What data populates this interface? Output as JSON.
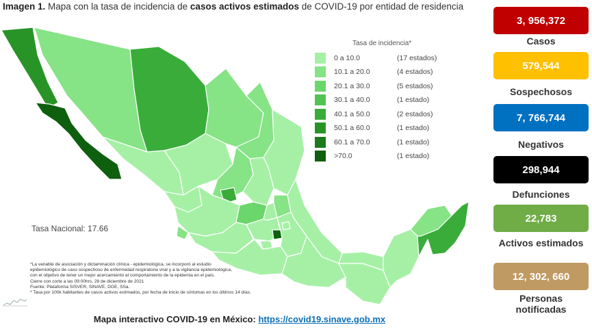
{
  "title": {
    "prefix": "Imagen 1.",
    "text1": " Mapa con la tasa de incidencia de ",
    "bold": "casos activos estimados",
    "text2": " de COVID-19 por entidad de residencia"
  },
  "legend": {
    "heading": "Tasa de incidencia*",
    "rows": [
      {
        "range": "0  a  10.0",
        "count": "(17 estados)",
        "color": "#a6f0a6"
      },
      {
        "range": "10.1 a  20.0",
        "count": "(4 estados)",
        "color": "#86e386"
      },
      {
        "range": "20.1 a  30.0",
        "count": "(5 estados)",
        "color": "#6bd66b"
      },
      {
        "range": "30.1 a  40.0",
        "count": "(1 estado)",
        "color": "#52c452"
      },
      {
        "range": "40.1 a  50.0",
        "count": "(2 estados)",
        "color": "#3aac3a"
      },
      {
        "range": "50.1 a  60.0",
        "count": "(1 estado)",
        "color": "#289428"
      },
      {
        "range": "60.1 a  70.0",
        "count": "(1 estado)",
        "color": "#1b7a1b"
      },
      {
        "range": ">70.0",
        "count": "(1 estado)",
        "color": "#0e5f0e"
      }
    ]
  },
  "tasa_nacional": "Tasa Nacional: 17.66",
  "notes": [
    "*La variable de asociación y dictaminación clínica - epidemiológica, se incorporó al estudio",
    "epidemiológico de caso sospechoso de enfermedad respiratoria viral y a la vigilancia epidemiológica,",
    "con el objetivo de tener un mejor acercamiento al comportamiento de la epidemia en el país.",
    "Cierre con corte a las 09:00hrs, 28 de diciembre de 2021",
    "Fuente: Plataforma SISVER, SINAVE, DGE, SSa.",
    "* Tasa por 100k habitantes de casos activos estimados, por fecha de inicio de síntomas en los últimos 14 días."
  ],
  "footer": {
    "text": "Mapa interactivo COVID-19 en México: ",
    "link": "https://covid19.sinave.gob.mx"
  },
  "stats": [
    {
      "value": "3, 956,372",
      "label": "Casos",
      "color": "#c00000"
    },
    {
      "value": "579,544",
      "label": "Sospechosos",
      "color": "#ffc000"
    },
    {
      "value": "7, 766,744",
      "label": "Negativos",
      "color": "#0070c0"
    },
    {
      "value": "298,944",
      "label": "Defunciones",
      "color": "#000000"
    },
    {
      "value": "22,783",
      "label": "Activos estimados",
      "color": "#70ad47"
    },
    {
      "value": "12, 302,  660",
      "label": "Personas notificadas",
      "color": "#c09a63"
    }
  ]
}
